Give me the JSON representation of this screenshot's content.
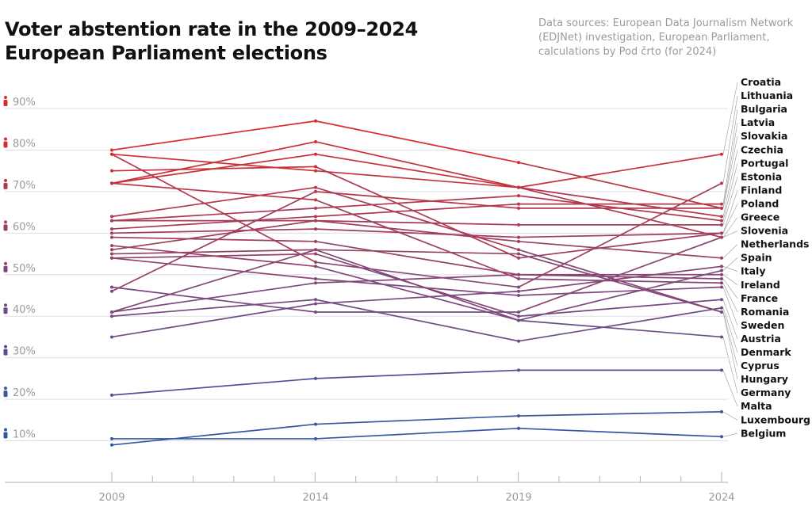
{
  "title": "Voter abstention rate in the 2009–2024 European Parliament elections",
  "source": "Data sources: European Data Journalism Network (EDJNet) investigation, European Parliament, calculations by Pod črto (for 2024)",
  "colors": {
    "high": "#d92b2b",
    "low": "#2f58a6",
    "grid": "#e0dcea",
    "axis": "#b3aec7",
    "leader": "#9a9a9a"
  },
  "icons": {
    "tick_icon": "person-icon"
  },
  "chart_data": {
    "type": "line",
    "title": "Voter abstention rate in the 2009–2024 European Parliament elections",
    "x": [
      "2009",
      "2014",
      "2019",
      "2024"
    ],
    "ylim": [
      0,
      90
    ],
    "yticks": [
      10,
      20,
      30,
      40,
      50,
      60,
      70,
      80,
      90
    ],
    "ytick_labels": [
      "10%",
      "20%",
      "30%",
      "40%",
      "50%",
      "60%",
      "70%",
      "80%",
      "90%"
    ],
    "grid": true,
    "label_placement": "right",
    "series": [
      {
        "name": "Croatia",
        "values": [
          79,
          75,
          71,
          79
        ]
      },
      {
        "name": "Lithuania",
        "values": [
          79,
          53,
          47,
          72
        ]
      },
      {
        "name": "Bulgaria",
        "values": [
          61,
          64,
          67,
          67
        ]
      },
      {
        "name": "Latvia",
        "values": [
          46,
          70,
          66,
          66
        ]
      },
      {
        "name": "Slovakia",
        "values": [
          80,
          87,
          77,
          66
        ]
      },
      {
        "name": "Czechia",
        "values": [
          72,
          82,
          71,
          64
        ]
      },
      {
        "name": "Portugal",
        "values": [
          63,
          66,
          69,
          63
        ]
      },
      {
        "name": "Estonia",
        "values": [
          56,
          63,
          62,
          62
        ]
      },
      {
        "name": "Finland",
        "values": [
          60,
          61,
          59,
          60
        ]
      },
      {
        "name": "Poland",
        "values": [
          75,
          76,
          54,
          60
        ]
      },
      {
        "name": "Greece",
        "values": [
          47,
          41,
          41,
          59
        ]
      },
      {
        "name": "Slovenia",
        "values": [
          72,
          79,
          71,
          59
        ]
      },
      {
        "name": "Netherlands",
        "values": [
          63,
          63,
          58,
          54
        ]
      },
      {
        "name": "Spain",
        "values": [
          55,
          56,
          39,
          51
        ]
      },
      {
        "name": "Italy",
        "values": [
          35,
          43,
          46,
          52
        ]
      },
      {
        "name": "Ireland",
        "values": [
          41,
          48,
          50,
          50
        ]
      },
      {
        "name": "France",
        "values": [
          59,
          58,
          50,
          49
        ]
      },
      {
        "name": "Romania",
        "values": [
          72,
          68,
          49,
          48
        ]
      },
      {
        "name": "Sweden",
        "values": [
          54,
          49,
          45,
          47
        ]
      },
      {
        "name": "Austria",
        "values": [
          54,
          55,
          40,
          44
        ]
      },
      {
        "name": "Denmark",
        "values": [
          40,
          44,
          34,
          42
        ]
      },
      {
        "name": "Cyprus",
        "values": [
          41,
          56,
          55,
          41
        ]
      },
      {
        "name": "Hungary",
        "values": [
          64,
          71,
          56,
          41
        ]
      },
      {
        "name": "Germany",
        "values": [
          57,
          52,
          39,
          35
        ]
      },
      {
        "name": "Malta",
        "values": [
          21,
          25,
          27,
          27
        ]
      },
      {
        "name": "Luxembourg",
        "values": [
          9,
          14,
          16,
          17
        ]
      },
      {
        "name": "Belgium",
        "values": [
          10.5,
          10.5,
          13,
          11
        ]
      }
    ]
  }
}
